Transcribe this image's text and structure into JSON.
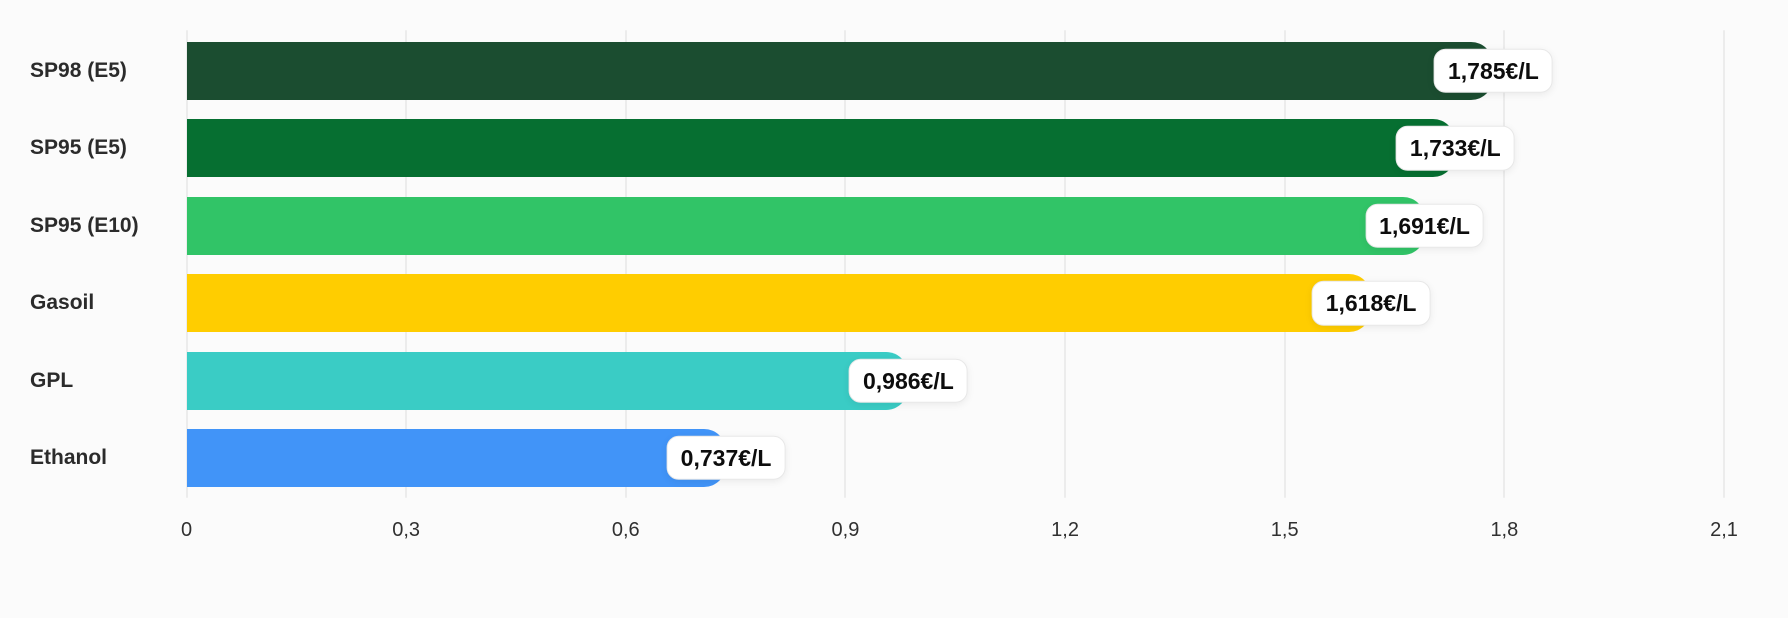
{
  "chart_data": {
    "type": "bar",
    "orientation": "horizontal",
    "title": "",
    "xlabel": "",
    "ylabel": "",
    "unit": "€/L",
    "categories": [
      "SP98 (E5)",
      "SP95 (E5)",
      "SP95 (E10)",
      "Gasoil",
      "GPL",
      "Ethanol"
    ],
    "series": [
      {
        "name": "fuel-price",
        "values": [
          1.785,
          1.733,
          1.691,
          1.618,
          0.986,
          0.737
        ],
        "value_labels": [
          "1,785€/L",
          "1,733€/L",
          "1,691€/L",
          "1,618€/L",
          "0,986€/L",
          "0,737€/L"
        ],
        "bar_colors": [
          "#1B4D30",
          "#066F31",
          "#31C467",
          "#FFCD00",
          "#3ACCC5",
          "#4194F8"
        ]
      }
    ],
    "xlim": [
      0,
      2.1
    ],
    "xticks": [
      0,
      0.3,
      0.6,
      0.9,
      1.2,
      1.5,
      1.8,
      2.1
    ],
    "xtick_labels": [
      "0",
      "0,3",
      "0,6",
      "0,9",
      "1,2",
      "1,5",
      "1,8",
      "2,1"
    ],
    "grid": true,
    "legend": "none"
  },
  "style": {
    "background_color": "#FBFBFB",
    "gridline_color": "#ECECEC",
    "category_label_color": "#2B2B2B",
    "tick_label_color": "#303030",
    "badge_background": "#FFFFFF",
    "badge_border": "#E8E8E8",
    "badge_text_color": "#0D0D0D"
  }
}
